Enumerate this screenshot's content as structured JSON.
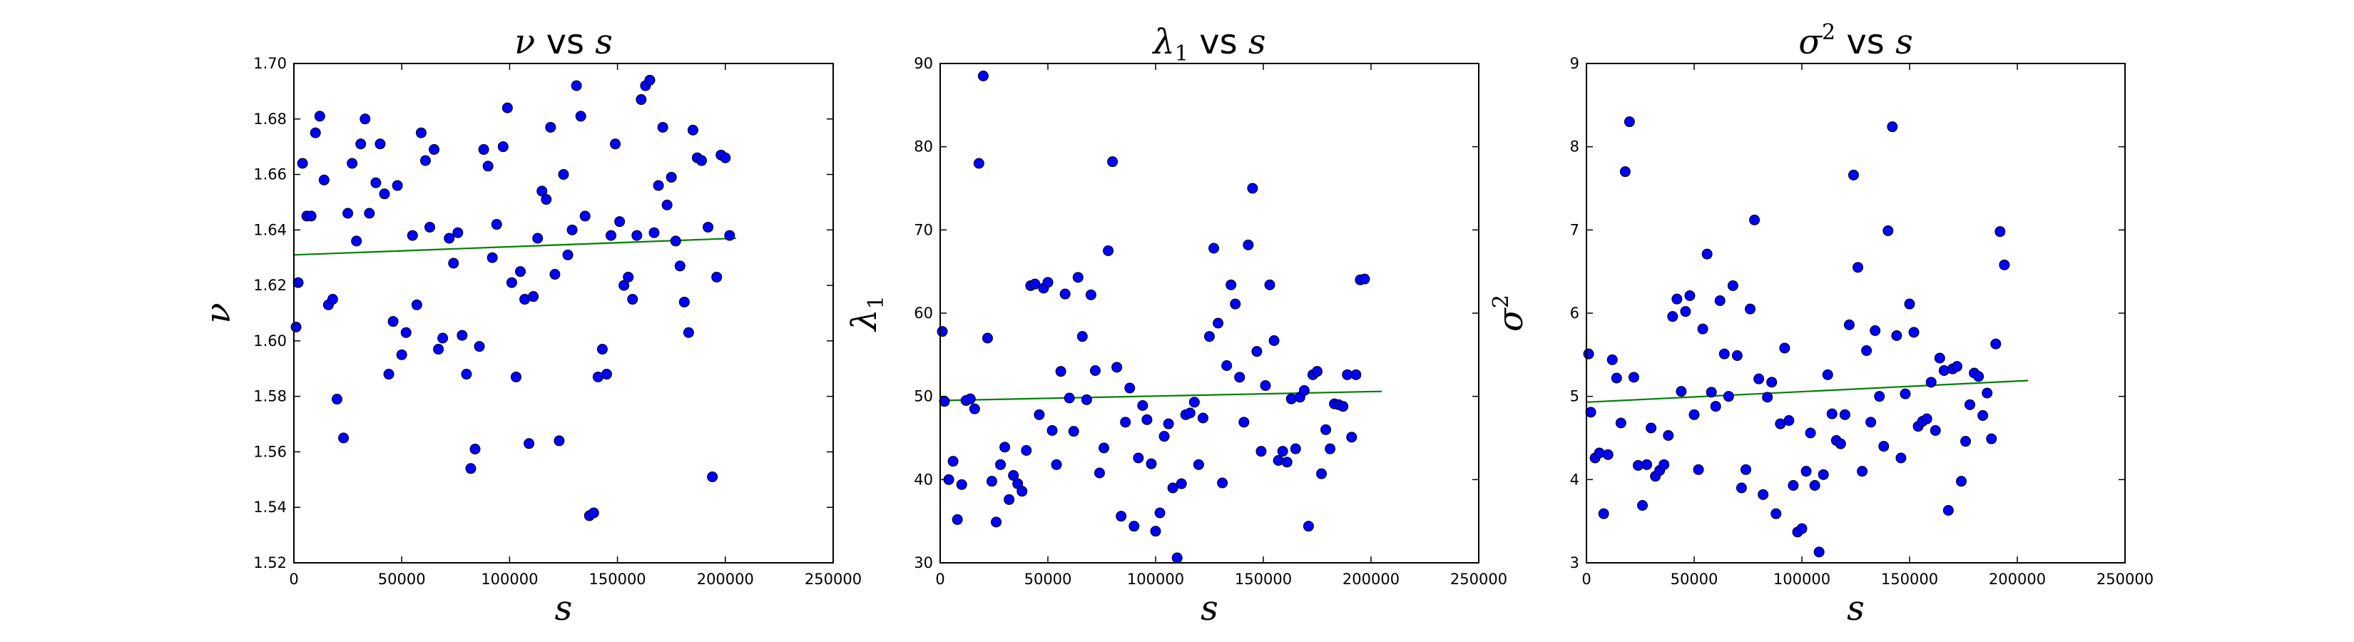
{
  "chart_data": [
    {
      "type": "scatter",
      "title_greek": "ν",
      "title_sub": "",
      "title_sup": "",
      "title_vs": "vs",
      "title_s": "s",
      "ylabel_greek": "ν",
      "ylabel_sub": "",
      "ylabel_sup": "",
      "xlabel": "s",
      "xlim": [
        0,
        250000
      ],
      "ylim": [
        1.52,
        1.7
      ],
      "xticks": [
        "0",
        "50000",
        "100000",
        "150000",
        "200000",
        "250000"
      ],
      "yticks": [
        "1.52",
        "1.54",
        "1.56",
        "1.58",
        "1.60",
        "1.62",
        "1.64",
        "1.66",
        "1.68",
        "1.70"
      ],
      "point_color": "#0000ff",
      "fit_color": "#008000",
      "fit_line": {
        "x": [
          0,
          205000
        ],
        "y": [
          1.631,
          1.637
        ]
      },
      "points": [
        [
          1000,
          1.605
        ],
        [
          2000,
          1.621
        ],
        [
          4000,
          1.664
        ],
        [
          6000,
          1.645
        ],
        [
          8000,
          1.645
        ],
        [
          10000,
          1.675
        ],
        [
          12000,
          1.681
        ],
        [
          14000,
          1.658
        ],
        [
          16000,
          1.613
        ],
        [
          18000,
          1.615
        ],
        [
          20000,
          1.579
        ],
        [
          23000,
          1.565
        ],
        [
          25000,
          1.646
        ],
        [
          27000,
          1.664
        ],
        [
          29000,
          1.636
        ],
        [
          31000,
          1.671
        ],
        [
          33000,
          1.68
        ],
        [
          35000,
          1.646
        ],
        [
          38000,
          1.657
        ],
        [
          40000,
          1.671
        ],
        [
          42000,
          1.653
        ],
        [
          44000,
          1.588
        ],
        [
          46000,
          1.607
        ],
        [
          48000,
          1.656
        ],
        [
          50000,
          1.595
        ],
        [
          52000,
          1.603
        ],
        [
          55000,
          1.638
        ],
        [
          57000,
          1.613
        ],
        [
          59000,
          1.675
        ],
        [
          61000,
          1.665
        ],
        [
          63000,
          1.641
        ],
        [
          65000,
          1.669
        ],
        [
          67000,
          1.597
        ],
        [
          69000,
          1.601
        ],
        [
          72000,
          1.637
        ],
        [
          74000,
          1.628
        ],
        [
          76000,
          1.639
        ],
        [
          78000,
          1.602
        ],
        [
          80000,
          1.588
        ],
        [
          82000,
          1.554
        ],
        [
          84000,
          1.561
        ],
        [
          86000,
          1.598
        ],
        [
          88000,
          1.669
        ],
        [
          90000,
          1.663
        ],
        [
          92000,
          1.63
        ],
        [
          94000,
          1.642
        ],
        [
          97000,
          1.67
        ],
        [
          99000,
          1.684
        ],
        [
          101000,
          1.621
        ],
        [
          103000,
          1.587
        ],
        [
          105000,
          1.625
        ],
        [
          107000,
          1.615
        ],
        [
          109000,
          1.563
        ],
        [
          111000,
          1.616
        ],
        [
          113000,
          1.637
        ],
        [
          115000,
          1.654
        ],
        [
          117000,
          1.651
        ],
        [
          119000,
          1.677
        ],
        [
          121000,
          1.624
        ],
        [
          123000,
          1.564
        ],
        [
          125000,
          1.66
        ],
        [
          127000,
          1.631
        ],
        [
          129000,
          1.64
        ],
        [
          131000,
          1.692
        ],
        [
          133000,
          1.681
        ],
        [
          135000,
          1.645
        ],
        [
          137000,
          1.537
        ],
        [
          139000,
          1.538
        ],
        [
          141000,
          1.587
        ],
        [
          143000,
          1.597
        ],
        [
          145000,
          1.588
        ],
        [
          147000,
          1.638
        ],
        [
          149000,
          1.671
        ],
        [
          151000,
          1.643
        ],
        [
          153000,
          1.62
        ],
        [
          155000,
          1.623
        ],
        [
          157000,
          1.615
        ],
        [
          159000,
          1.638
        ],
        [
          161000,
          1.687
        ],
        [
          163000,
          1.692
        ],
        [
          165000,
          1.694
        ],
        [
          167000,
          1.639
        ],
        [
          169000,
          1.656
        ],
        [
          171000,
          1.677
        ],
        [
          173000,
          1.649
        ],
        [
          175000,
          1.659
        ],
        [
          177000,
          1.636
        ],
        [
          179000,
          1.627
        ],
        [
          181000,
          1.614
        ],
        [
          183000,
          1.603
        ],
        [
          185000,
          1.676
        ],
        [
          187000,
          1.666
        ],
        [
          189000,
          1.665
        ],
        [
          192000,
          1.641
        ],
        [
          194000,
          1.551
        ],
        [
          196000,
          1.623
        ],
        [
          198000,
          1.667
        ],
        [
          200000,
          1.666
        ],
        [
          202000,
          1.638
        ]
      ]
    },
    {
      "type": "scatter",
      "title_greek": "λ",
      "title_sub": "1",
      "title_sup": "",
      "title_vs": "vs",
      "title_s": "s",
      "ylabel_greek": "λ",
      "ylabel_sub": "1",
      "ylabel_sup": "",
      "xlabel": "s",
      "xlim": [
        0,
        250000
      ],
      "ylim": [
        30,
        90
      ],
      "xticks": [
        "0",
        "50000",
        "100000",
        "150000",
        "200000",
        "250000"
      ],
      "yticks": [
        "30",
        "40",
        "50",
        "60",
        "70",
        "80",
        "90"
      ],
      "point_color": "#0000ff",
      "fit_color": "#008000",
      "fit_line": {
        "x": [
          0,
          205000
        ],
        "y": [
          49.5,
          50.6
        ]
      },
      "points": [
        [
          1000,
          57.8
        ],
        [
          2000,
          49.4
        ],
        [
          4000,
          40.0
        ],
        [
          6000,
          42.2
        ],
        [
          8000,
          35.2
        ],
        [
          10000,
          39.4
        ],
        [
          12000,
          49.5
        ],
        [
          14000,
          49.7
        ],
        [
          16000,
          48.5
        ],
        [
          18000,
          78.0
        ],
        [
          20000,
          88.5
        ],
        [
          22000,
          57.0
        ],
        [
          24000,
          39.8
        ],
        [
          26000,
          34.9
        ],
        [
          28000,
          41.8
        ],
        [
          30000,
          43.9
        ],
        [
          32000,
          37.6
        ],
        [
          34000,
          40.5
        ],
        [
          36000,
          39.5
        ],
        [
          38000,
          38.6
        ],
        [
          40000,
          43.5
        ],
        [
          42000,
          63.3
        ],
        [
          44000,
          63.5
        ],
        [
          46000,
          47.8
        ],
        [
          48000,
          63.0
        ],
        [
          50000,
          63.7
        ],
        [
          52000,
          45.9
        ],
        [
          54000,
          41.8
        ],
        [
          56000,
          53.0
        ],
        [
          58000,
          62.3
        ],
        [
          60000,
          49.8
        ],
        [
          62000,
          45.8
        ],
        [
          64000,
          64.3
        ],
        [
          66000,
          57.2
        ],
        [
          68000,
          49.6
        ],
        [
          70000,
          62.2
        ],
        [
          72000,
          53.1
        ],
        [
          74000,
          40.8
        ],
        [
          76000,
          43.8
        ],
        [
          78000,
          67.5
        ],
        [
          80000,
          78.2
        ],
        [
          82000,
          53.5
        ],
        [
          84000,
          35.6
        ],
        [
          86000,
          46.9
        ],
        [
          88000,
          51.0
        ],
        [
          90000,
          34.4
        ],
        [
          92000,
          42.6
        ],
        [
          94000,
          48.9
        ],
        [
          96000,
          47.2
        ],
        [
          98000,
          41.9
        ],
        [
          100000,
          33.8
        ],
        [
          102000,
          36.0
        ],
        [
          104000,
          45.2
        ],
        [
          106000,
          46.7
        ],
        [
          108000,
          39.0
        ],
        [
          110000,
          30.6
        ],
        [
          112000,
          39.5
        ],
        [
          114000,
          47.8
        ],
        [
          116000,
          48.0
        ],
        [
          118000,
          49.3
        ],
        [
          120000,
          41.8
        ],
        [
          122000,
          47.4
        ],
        [
          125000,
          57.2
        ],
        [
          127000,
          67.8
        ],
        [
          129000,
          58.8
        ],
        [
          131000,
          39.6
        ],
        [
          133000,
          53.7
        ],
        [
          135000,
          63.4
        ],
        [
          137000,
          61.1
        ],
        [
          139000,
          52.3
        ],
        [
          141000,
          46.9
        ],
        [
          143000,
          68.2
        ],
        [
          145000,
          75.0
        ],
        [
          147000,
          55.4
        ],
        [
          149000,
          43.4
        ],
        [
          151000,
          51.3
        ],
        [
          153000,
          63.4
        ],
        [
          155000,
          56.7
        ],
        [
          157000,
          42.3
        ],
        [
          159000,
          43.4
        ],
        [
          161000,
          42.1
        ],
        [
          163000,
          49.7
        ],
        [
          165000,
          43.7
        ],
        [
          167000,
          49.9
        ],
        [
          169000,
          50.7
        ],
        [
          171000,
          34.4
        ],
        [
          173000,
          52.6
        ],
        [
          175000,
          53.0
        ],
        [
          177000,
          40.7
        ],
        [
          179000,
          46.0
        ],
        [
          181000,
          43.7
        ],
        [
          183000,
          49.1
        ],
        [
          185000,
          49.0
        ],
        [
          187000,
          48.8
        ],
        [
          189000,
          52.6
        ],
        [
          191000,
          45.1
        ],
        [
          193000,
          52.6
        ],
        [
          195000,
          64.0
        ],
        [
          197000,
          64.1
        ]
      ]
    },
    {
      "type": "scatter",
      "title_greek": "σ",
      "title_sub": "",
      "title_sup": "2",
      "title_vs": "vs",
      "title_s": "s",
      "ylabel_greek": "σ",
      "ylabel_sub": "",
      "ylabel_sup": "2",
      "xlabel": "s",
      "xlim": [
        0,
        250000
      ],
      "ylim": [
        3,
        9
      ],
      "xticks": [
        "0",
        "50000",
        "100000",
        "150000",
        "200000",
        "250000"
      ],
      "yticks": [
        "3",
        "4",
        "5",
        "6",
        "7",
        "8",
        "9"
      ],
      "point_color": "#0000ff",
      "fit_color": "#008000",
      "fit_line": {
        "x": [
          0,
          205000
        ],
        "y": [
          4.93,
          5.19
        ]
      },
      "points": [
        [
          1000,
          5.51
        ],
        [
          2000,
          4.81
        ],
        [
          4000,
          4.26
        ],
        [
          6000,
          4.32
        ],
        [
          8000,
          3.59
        ],
        [
          10000,
          4.3
        ],
        [
          12000,
          5.44
        ],
        [
          14000,
          5.22
        ],
        [
          16000,
          4.68
        ],
        [
          18000,
          7.7
        ],
        [
          20000,
          8.3
        ],
        [
          22000,
          5.23
        ],
        [
          24000,
          4.17
        ],
        [
          26000,
          3.69
        ],
        [
          28000,
          4.18
        ],
        [
          30000,
          4.62
        ],
        [
          32000,
          4.04
        ],
        [
          34000,
          4.11
        ],
        [
          36000,
          4.18
        ],
        [
          38000,
          4.53
        ],
        [
          40000,
          5.96
        ],
        [
          42000,
          6.17
        ],
        [
          44000,
          5.06
        ],
        [
          46000,
          6.02
        ],
        [
          48000,
          6.21
        ],
        [
          50000,
          4.78
        ],
        [
          52000,
          4.12
        ],
        [
          54000,
          5.81
        ],
        [
          56000,
          6.71
        ],
        [
          58000,
          5.05
        ],
        [
          60000,
          4.88
        ],
        [
          62000,
          6.15
        ],
        [
          64000,
          5.51
        ],
        [
          66000,
          5.0
        ],
        [
          68000,
          6.33
        ],
        [
          70000,
          5.49
        ],
        [
          72000,
          3.9
        ],
        [
          74000,
          4.12
        ],
        [
          76000,
          6.05
        ],
        [
          78000,
          7.12
        ],
        [
          80000,
          5.21
        ],
        [
          82000,
          3.82
        ],
        [
          84000,
          4.99
        ],
        [
          86000,
          5.17
        ],
        [
          88000,
          3.59
        ],
        [
          90000,
          4.67
        ],
        [
          92000,
          5.58
        ],
        [
          94000,
          4.71
        ],
        [
          96000,
          3.93
        ],
        [
          98000,
          3.37
        ],
        [
          100000,
          3.41
        ],
        [
          102000,
          4.1
        ],
        [
          104000,
          4.56
        ],
        [
          106000,
          3.93
        ],
        [
          108000,
          3.13
        ],
        [
          110000,
          4.06
        ],
        [
          112000,
          5.26
        ],
        [
          114000,
          4.79
        ],
        [
          116000,
          4.47
        ],
        [
          118000,
          4.43
        ],
        [
          120000,
          4.78
        ],
        [
          122000,
          5.86
        ],
        [
          124000,
          7.66
        ],
        [
          126000,
          6.55
        ],
        [
          128000,
          4.1
        ],
        [
          130000,
          5.55
        ],
        [
          132000,
          4.69
        ],
        [
          134000,
          5.79
        ],
        [
          136000,
          5.0
        ],
        [
          138000,
          4.4
        ],
        [
          140000,
          6.99
        ],
        [
          142000,
          8.24
        ],
        [
          144000,
          5.73
        ],
        [
          146000,
          4.26
        ],
        [
          148000,
          5.03
        ],
        [
          150000,
          6.11
        ],
        [
          152000,
          5.77
        ],
        [
          154000,
          4.64
        ],
        [
          156000,
          4.7
        ],
        [
          158000,
          4.73
        ],
        [
          160000,
          5.17
        ],
        [
          162000,
          4.59
        ],
        [
          164000,
          5.46
        ],
        [
          166000,
          5.31
        ],
        [
          168000,
          3.63
        ],
        [
          170000,
          5.33
        ],
        [
          172000,
          5.36
        ],
        [
          174000,
          3.98
        ],
        [
          176000,
          4.46
        ],
        [
          178000,
          4.9
        ],
        [
          180000,
          5.28
        ],
        [
          182000,
          5.24
        ],
        [
          184000,
          4.77
        ],
        [
          186000,
          5.04
        ],
        [
          188000,
          4.49
        ],
        [
          190000,
          5.63
        ],
        [
          192000,
          6.98
        ],
        [
          194000,
          6.58
        ]
      ]
    }
  ]
}
